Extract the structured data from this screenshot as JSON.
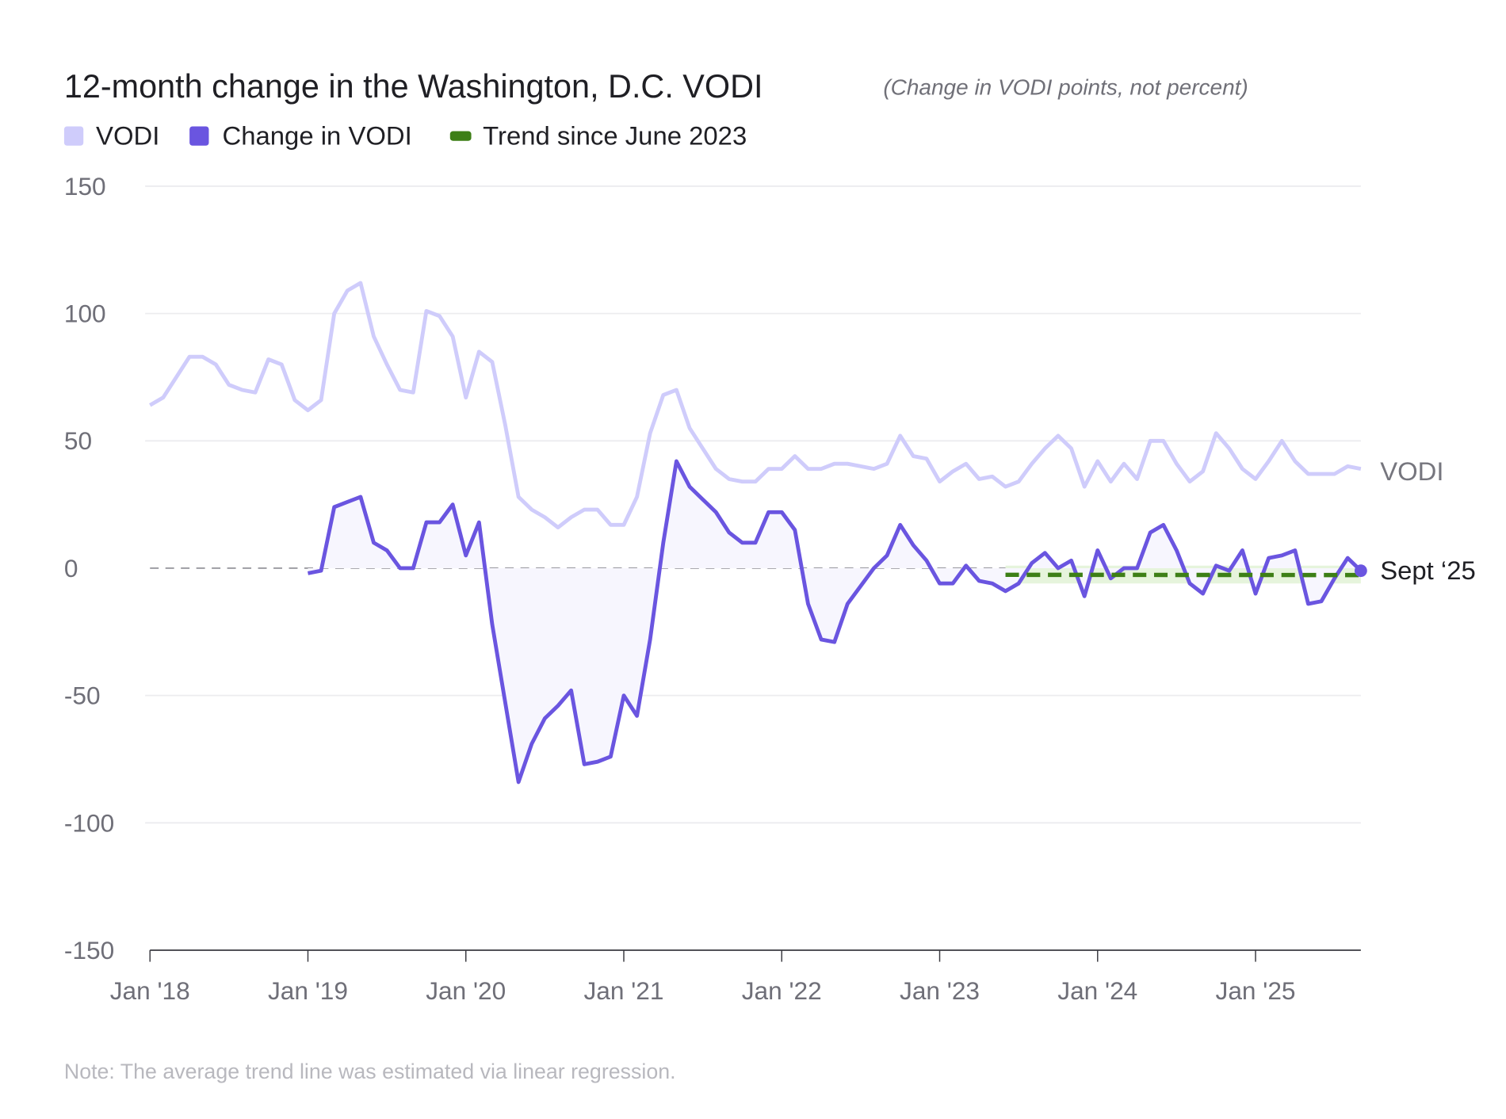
{
  "chart_data": {
    "type": "line",
    "title": "12-month change in the Washington, D.C. VODI",
    "subtitle": "(Change in VODI points, not percent)",
    "note": "Note: The average trend line was estimated via linear regression.",
    "xlabel": "",
    "ylabel": "",
    "ylim": [
      -150,
      150
    ],
    "yticks": [
      150,
      100,
      50,
      0,
      -50,
      -100,
      -150
    ],
    "xticks": [
      {
        "month": "2018-01",
        "label": "Jan '18"
      },
      {
        "month": "2019-01",
        "label": "Jan '19"
      },
      {
        "month": "2020-01",
        "label": "Jan '20"
      },
      {
        "month": "2021-01",
        "label": "Jan '21"
      },
      {
        "month": "2022-01",
        "label": "Jan '22"
      },
      {
        "month": "2023-01",
        "label": "Jan '23"
      },
      {
        "month": "2024-01",
        "label": "Jan '24"
      },
      {
        "month": "2025-01",
        "label": "Jan '25"
      }
    ],
    "grid": true,
    "legend_position": "top-left",
    "legend": [
      {
        "label": "VODI",
        "color": "#cfccfb"
      },
      {
        "label": "Change in VODI",
        "color": "#6a55e0"
      },
      {
        "label": "Trend since June 2023",
        "color": "#3d7f16"
      }
    ],
    "x": [
      "2018-01",
      "2018-02",
      "2018-03",
      "2018-04",
      "2018-05",
      "2018-06",
      "2018-07",
      "2018-08",
      "2018-09",
      "2018-10",
      "2018-11",
      "2018-12",
      "2019-01",
      "2019-02",
      "2019-03",
      "2019-04",
      "2019-05",
      "2019-06",
      "2019-07",
      "2019-08",
      "2019-09",
      "2019-10",
      "2019-11",
      "2019-12",
      "2020-01",
      "2020-02",
      "2020-03",
      "2020-04",
      "2020-05",
      "2020-06",
      "2020-07",
      "2020-08",
      "2020-09",
      "2020-10",
      "2020-11",
      "2020-12",
      "2021-01",
      "2021-02",
      "2021-03",
      "2021-04",
      "2021-05",
      "2021-06",
      "2021-07",
      "2021-08",
      "2021-09",
      "2021-10",
      "2021-11",
      "2021-12",
      "2022-01",
      "2022-02",
      "2022-03",
      "2022-04",
      "2022-05",
      "2022-06",
      "2022-07",
      "2022-08",
      "2022-09",
      "2022-10",
      "2022-11",
      "2022-12",
      "2023-01",
      "2023-02",
      "2023-03",
      "2023-04",
      "2023-05",
      "2023-06",
      "2023-07",
      "2023-08",
      "2023-09",
      "2023-10",
      "2023-11",
      "2023-12",
      "2024-01",
      "2024-02",
      "2024-03",
      "2024-04",
      "2024-05",
      "2024-06",
      "2024-07",
      "2024-08",
      "2024-09",
      "2024-10",
      "2024-11",
      "2024-12",
      "2025-01",
      "2025-02",
      "2025-03",
      "2025-04",
      "2025-05",
      "2025-06",
      "2025-07",
      "2025-08",
      "2025-09"
    ],
    "series": [
      {
        "name": "VODI",
        "end_label": "VODI",
        "color": "#cfccfb",
        "values": [
          64,
          67,
          75,
          83,
          83,
          80,
          72,
          70,
          69,
          82,
          80,
          66,
          62,
          66,
          100,
          109,
          112,
          91,
          80,
          70,
          69,
          101,
          99,
          91,
          67,
          85,
          81,
          56,
          28,
          23,
          20,
          16,
          20,
          23,
          23,
          17,
          17,
          28,
          53,
          68,
          70,
          55,
          47,
          39,
          35,
          34,
          34,
          39,
          39,
          44,
          39,
          39,
          41,
          41,
          40,
          39,
          41,
          52,
          44,
          43,
          34,
          38,
          41,
          35,
          36,
          32,
          34,
          41,
          47,
          52,
          47,
          32,
          42,
          34,
          41,
          35,
          50,
          50,
          41,
          34,
          38,
          53,
          47,
          39,
          35,
          42,
          50,
          42,
          37,
          37,
          37,
          40,
          39
        ]
      },
      {
        "name": "Change in VODI",
        "end_label": "Sept ‘25",
        "color": "#6a55e0",
        "fill_color": "#f7f6fe",
        "values": [
          null,
          null,
          null,
          null,
          null,
          null,
          null,
          null,
          null,
          null,
          null,
          null,
          -2,
          -1,
          24,
          26,
          28,
          10,
          7,
          0,
          0,
          18,
          18,
          25,
          5,
          18,
          -22,
          -53,
          -84,
          -69,
          -59,
          -54,
          -48,
          -77,
          -76,
          -74,
          -50,
          -58,
          -28,
          10,
          42,
          32,
          27,
          22,
          14,
          10,
          10,
          22,
          22,
          15,
          -14,
          -28,
          -29,
          -14,
          -7,
          0,
          5,
          17,
          9,
          3,
          -6,
          -6,
          1,
          -5,
          -6,
          -9,
          -6,
          2,
          6,
          0,
          3,
          -11,
          7,
          -4,
          0,
          0,
          14,
          17,
          7,
          -6,
          -10,
          1,
          -1,
          7,
          -10,
          4,
          5,
          7,
          -14,
          -13,
          -4,
          4,
          -1
        ]
      }
    ],
    "trend": {
      "name": "Trend since June 2023",
      "color": "#3d7f16",
      "band_color": "#e6f4dc",
      "start": {
        "x": "2023-06",
        "y": -2.6
      },
      "end": {
        "x": "2025-09",
        "y": -2.7
      },
      "band": [
        -6,
        1
      ]
    }
  }
}
